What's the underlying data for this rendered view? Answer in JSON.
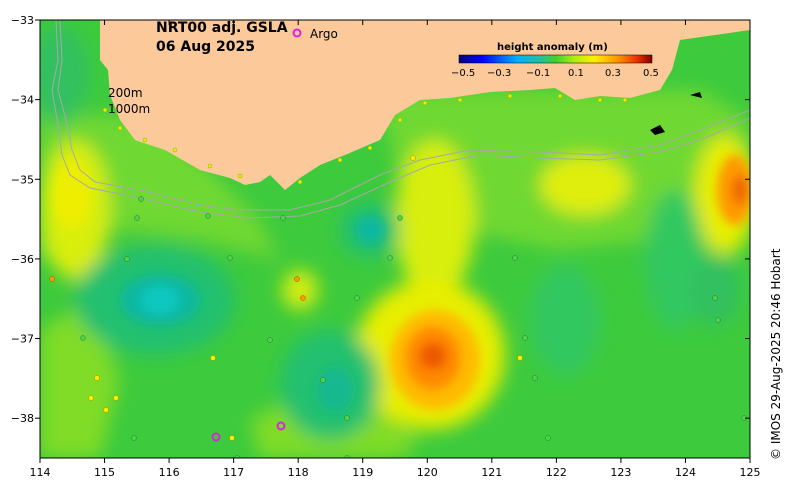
{
  "map": {
    "title_line1": "NRT00 adj. GSLA",
    "title_line2": "06 Aug 2025",
    "argo_label": "Argo",
    "argo_color": "#e020e0",
    "contour_200": "200m",
    "contour_1000": "1000m",
    "credit": "© IMOS 29-Aug-2025 20:46 Hobart",
    "land_color": "#fbc99a",
    "legend": {
      "title": "height anomaly (m)",
      "ticks": [
        "−0.5",
        "−0.3",
        "−0.1",
        "0.1",
        "0.3",
        "0.5"
      ],
      "range": [
        -0.5,
        0.5
      ]
    },
    "lon_ticks": [
      "114",
      "115",
      "116",
      "117",
      "118",
      "119",
      "120",
      "121",
      "122",
      "123",
      "124",
      "125"
    ],
    "lat_ticks": [
      "−33",
      "−34",
      "−35",
      "−36",
      "−37",
      "−38"
    ],
    "lon_range": [
      114,
      125
    ],
    "lat_range": [
      -38.5,
      -33
    ]
  }
}
